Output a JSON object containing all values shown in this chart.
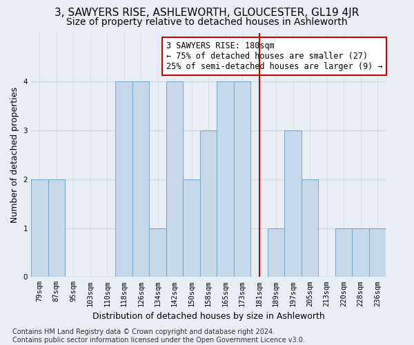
{
  "title": "3, SAWYERS RISE, ASHLEWORTH, GLOUCESTER, GL19 4JR",
  "subtitle": "Size of property relative to detached houses in Ashleworth",
  "xlabel": "Distribution of detached houses by size in Ashleworth",
  "ylabel": "Number of detached properties",
  "bins": [
    "79sqm",
    "87sqm",
    "95sqm",
    "103sqm",
    "110sqm",
    "118sqm",
    "126sqm",
    "134sqm",
    "142sqm",
    "150sqm",
    "158sqm",
    "165sqm",
    "173sqm",
    "181sqm",
    "189sqm",
    "197sqm",
    "205sqm",
    "213sqm",
    "220sqm",
    "228sqm",
    "236sqm"
  ],
  "values": [
    2,
    2,
    0,
    0,
    0,
    4,
    4,
    1,
    4,
    2,
    3,
    4,
    4,
    0,
    1,
    3,
    2,
    0,
    1,
    1,
    1
  ],
  "bar_color": "#c8d8eb",
  "bar_edge_color": "#7aaaca",
  "marker_bin_index": 13,
  "marker_line_color": "#cc0000",
  "annotation_text": "3 SAWYERS RISE: 180sqm\n← 75% of detached houses are smaller (27)\n25% of semi-detached houses are larger (9) →",
  "annotation_box_color": "#ffffff",
  "annotation_border_color": "#cc0000",
  "ylim": [
    0,
    5
  ],
  "yticks": [
    0,
    1,
    2,
    3,
    4
  ],
  "grid_color": "#d0d8e0",
  "bg_color": "#e8eef4",
  "footnote": "Contains HM Land Registry data © Crown copyright and database right 2024.\nContains public sector information licensed under the Open Government Licence v3.0.",
  "title_fontsize": 11,
  "subtitle_fontsize": 10,
  "xlabel_fontsize": 9,
  "ylabel_fontsize": 9,
  "tick_fontsize": 7.5,
  "annotation_fontsize": 8.5,
  "footnote_fontsize": 7
}
